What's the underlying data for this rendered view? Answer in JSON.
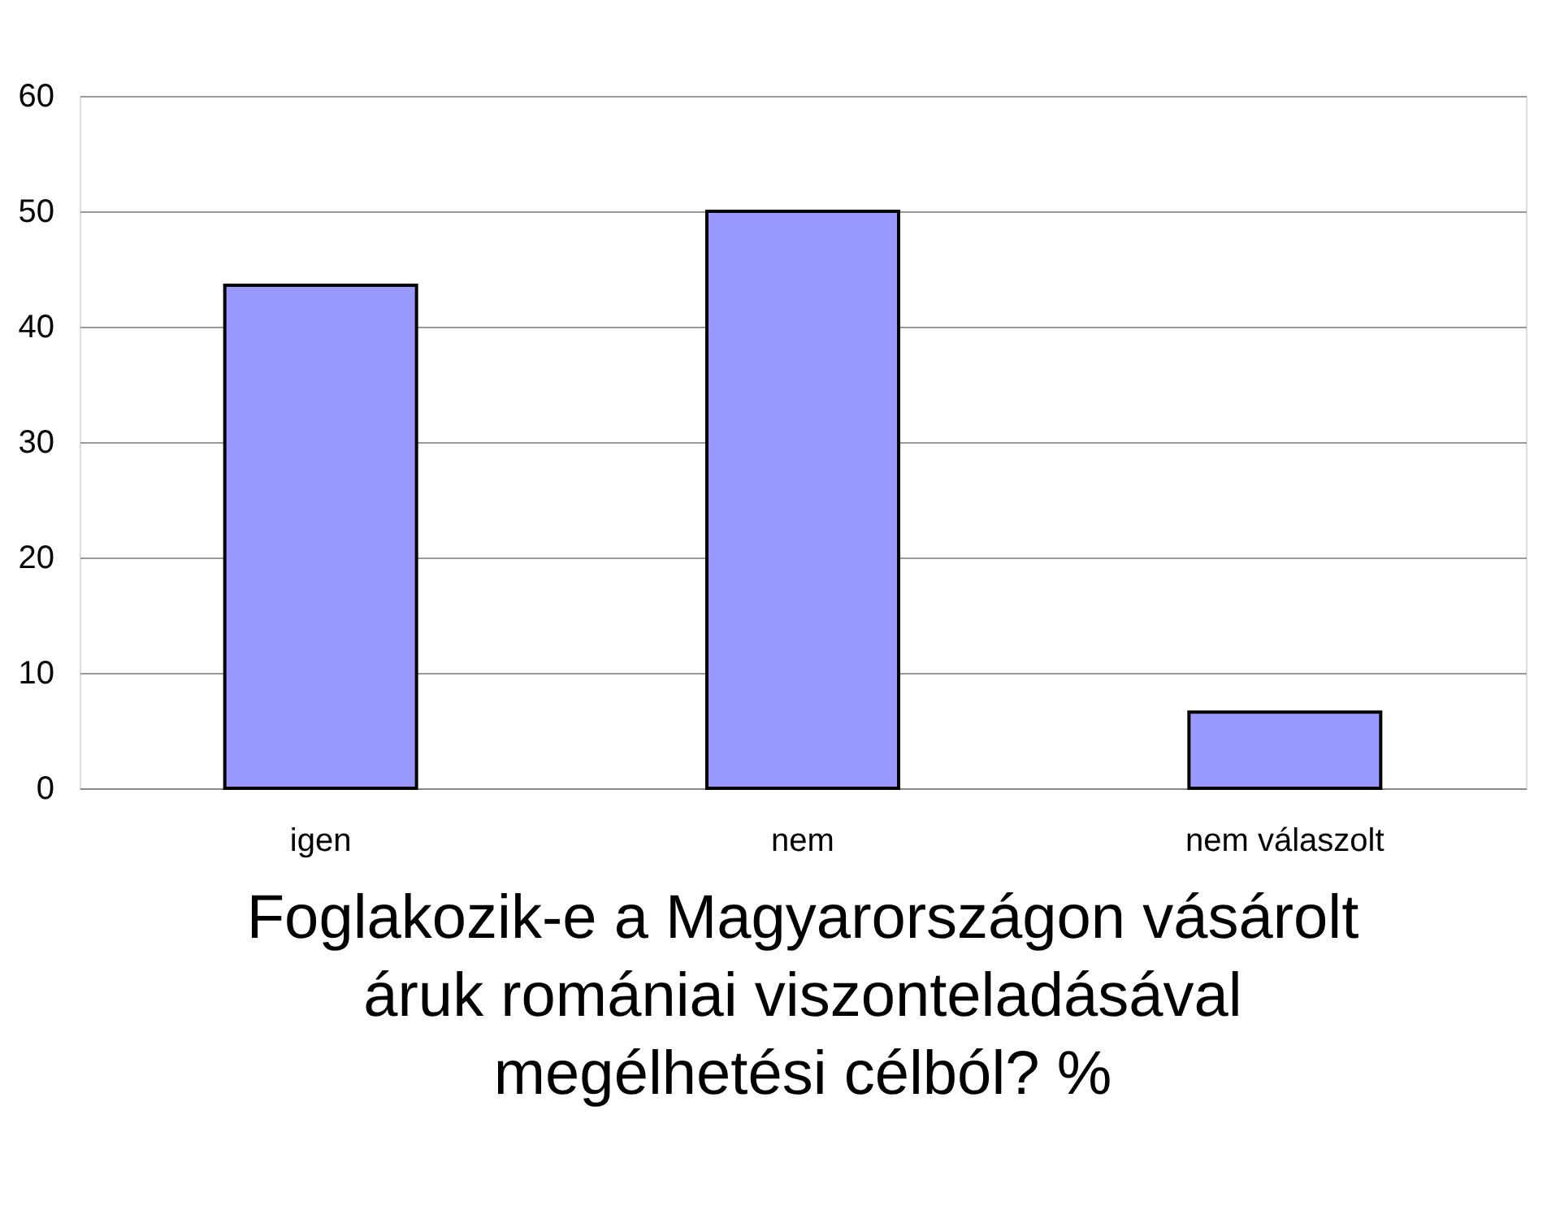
{
  "chart_data": {
    "type": "bar",
    "title": "Foglakozik-e a Magyarországon vásárolt áruk romániai viszonteladásával megélhetési célból? %",
    "categories": [
      "igen",
      "nem",
      "nem válaszolt"
    ],
    "values": [
      43.6,
      50,
      6.6
    ],
    "color": "#9999ff",
    "ylim": [
      0,
      60
    ],
    "yticks": [
      0,
      10,
      20,
      30,
      40,
      50,
      60
    ],
    "grid": "y"
  }
}
